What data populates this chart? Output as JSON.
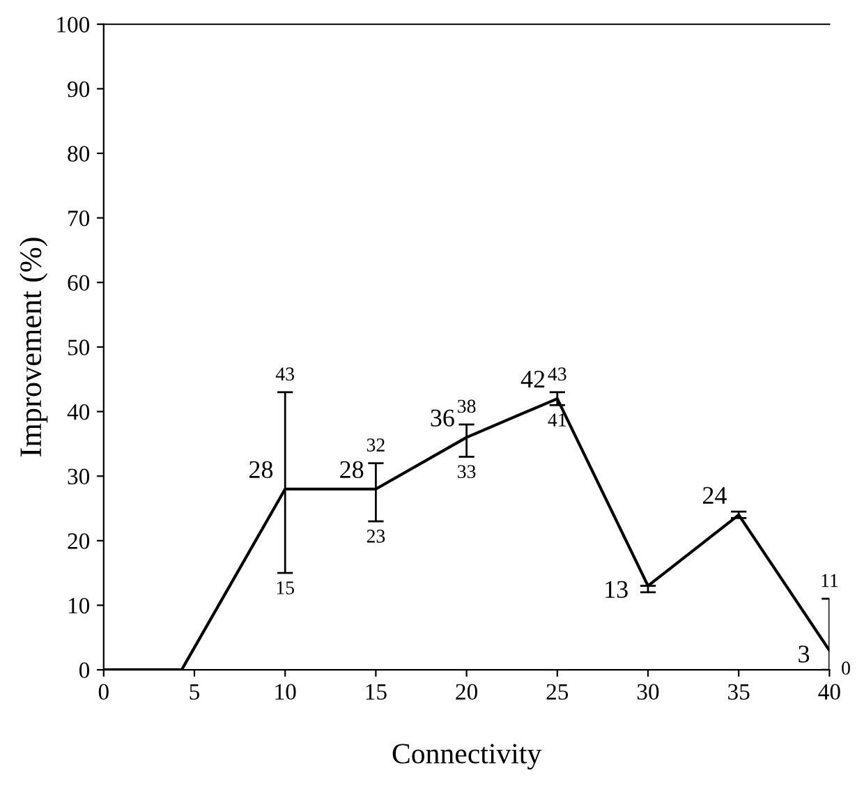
{
  "chart_data": {
    "type": "line",
    "xlabel": "Connectivity",
    "ylabel": "Improvement (%)",
    "x": [
      0,
      4.3,
      10,
      15,
      20,
      25,
      30,
      35,
      40
    ],
    "values": [
      0,
      0,
      28,
      28,
      36,
      42,
      13,
      24,
      3
    ],
    "value_labels": [
      null,
      null,
      "28",
      "28",
      "36",
      "42",
      "13",
      "24",
      "3"
    ],
    "errors": [
      null,
      null,
      [
        15,
        43
      ],
      [
        23,
        32
      ],
      [
        33,
        38
      ],
      [
        41,
        43
      ],
      [
        12,
        13
      ],
      [
        23.5,
        24.5
      ],
      [
        0,
        11
      ]
    ],
    "color": "#000000",
    "marker": "none",
    "line_style": "solid",
    "grid": false,
    "xlim": [
      0,
      40
    ],
    "xticks": [
      0,
      5,
      10,
      15,
      20,
      25,
      30,
      35,
      40
    ],
    "ylim": [
      0,
      100
    ],
    "yticks": [
      0,
      10,
      20,
      30,
      40,
      50,
      60,
      70,
      80,
      90,
      100
    ],
    "annotations": [
      {
        "text": "43",
        "x": 10,
        "y": 43
      },
      {
        "text": "15",
        "x": 10,
        "y": 15
      },
      {
        "text": "32",
        "x": 15,
        "y": 32
      },
      {
        "text": "23",
        "x": 15,
        "y": 23
      },
      {
        "text": "38",
        "x": 20,
        "y": 38
      },
      {
        "text": "33",
        "x": 20,
        "y": 33
      },
      {
        "text": "43",
        "x": 25,
        "y": 43
      },
      {
        "text": "41",
        "x": 25,
        "y": 41
      },
      {
        "text": "11",
        "x": 40,
        "y": 11
      },
      {
        "text": "0",
        "x": 40,
        "y": 0
      }
    ]
  }
}
